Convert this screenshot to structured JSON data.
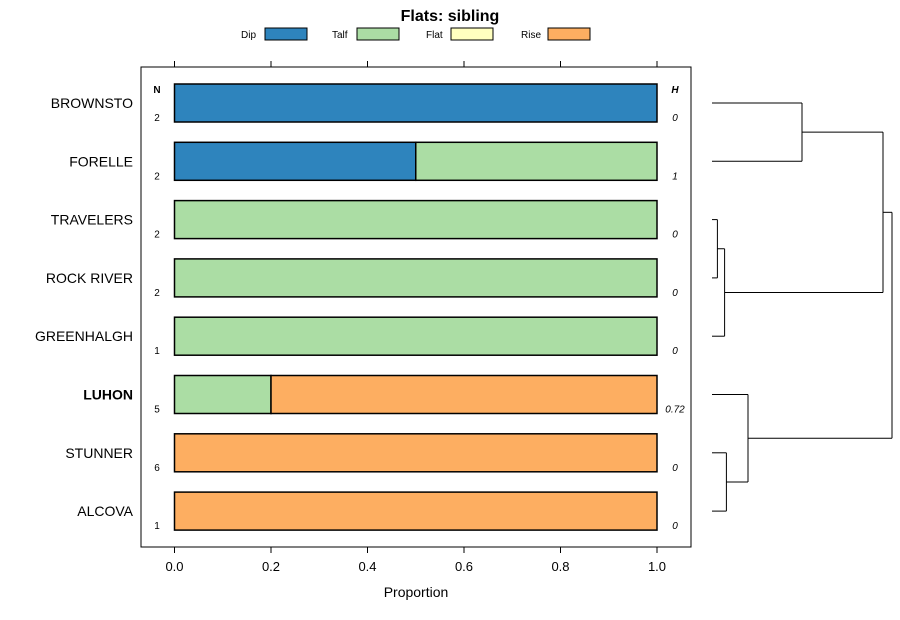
{
  "chart_data": {
    "type": "bar",
    "subtype": "stacked-horizontal-proportion",
    "title": "Flats: sibling",
    "xlabel": "Proportion",
    "xlim": [
      -0.07,
      1.07
    ],
    "xticks": [
      0.0,
      0.2,
      0.4,
      0.6,
      0.8,
      1.0
    ],
    "xtick_labels": [
      "0.0",
      "0.2",
      "0.4",
      "0.6",
      "0.8",
      "1.0"
    ],
    "legend_position": "top",
    "legend": [
      {
        "label": "Dip",
        "color": "#2e84bd"
      },
      {
        "label": "Talf",
        "color": "#abdda4"
      },
      {
        "label": "Flat",
        "color": "#ffffbf"
      },
      {
        "label": "Rise",
        "color": "#fdae61"
      }
    ],
    "n_header": "N",
    "h_header": "H",
    "rows": [
      {
        "label": "BROWNSTO",
        "n": "2",
        "h": "0",
        "bold": false,
        "values": [
          1.0,
          0.0,
          0.0,
          0.0
        ]
      },
      {
        "label": "FORELLE",
        "n": "2",
        "h": "1",
        "bold": false,
        "values": [
          0.5,
          0.5,
          0.0,
          0.0
        ]
      },
      {
        "label": "TRAVELERS",
        "n": "2",
        "h": "0",
        "bold": false,
        "values": [
          0.0,
          1.0,
          0.0,
          0.0
        ]
      },
      {
        "label": "ROCK RIVER",
        "n": "2",
        "h": "0",
        "bold": false,
        "values": [
          0.0,
          1.0,
          0.0,
          0.0
        ]
      },
      {
        "label": "GREENHALGH",
        "n": "1",
        "h": "0",
        "bold": false,
        "values": [
          0.0,
          1.0,
          0.0,
          0.0
        ]
      },
      {
        "label": "LUHON",
        "n": "5",
        "h": "0.72",
        "bold": true,
        "values": [
          0.0,
          0.2,
          0.0,
          0.8
        ]
      },
      {
        "label": "STUNNER",
        "n": "6",
        "h": "0",
        "bold": false,
        "values": [
          0.0,
          0.0,
          0.0,
          1.0
        ]
      },
      {
        "label": "ALCOVA",
        "n": "1",
        "h": "0",
        "bold": false,
        "values": [
          0.0,
          0.0,
          0.0,
          1.0
        ]
      }
    ],
    "dendrogram": {
      "merges": [
        {
          "left": 2,
          "right": 3,
          "height": 0.03
        },
        {
          "left": 6,
          "right": 7,
          "height": 0.08
        },
        {
          "left": 8,
          "right": 4,
          "height": 0.07
        },
        {
          "left": 5,
          "right": 9,
          "height": 0.2
        },
        {
          "left": 0,
          "right": 1,
          "height": 0.5
        },
        {
          "left": 12,
          "right": 10,
          "height": 0.95
        },
        {
          "left": 11,
          "right": 13,
          "height": 1.0
        }
      ]
    }
  }
}
